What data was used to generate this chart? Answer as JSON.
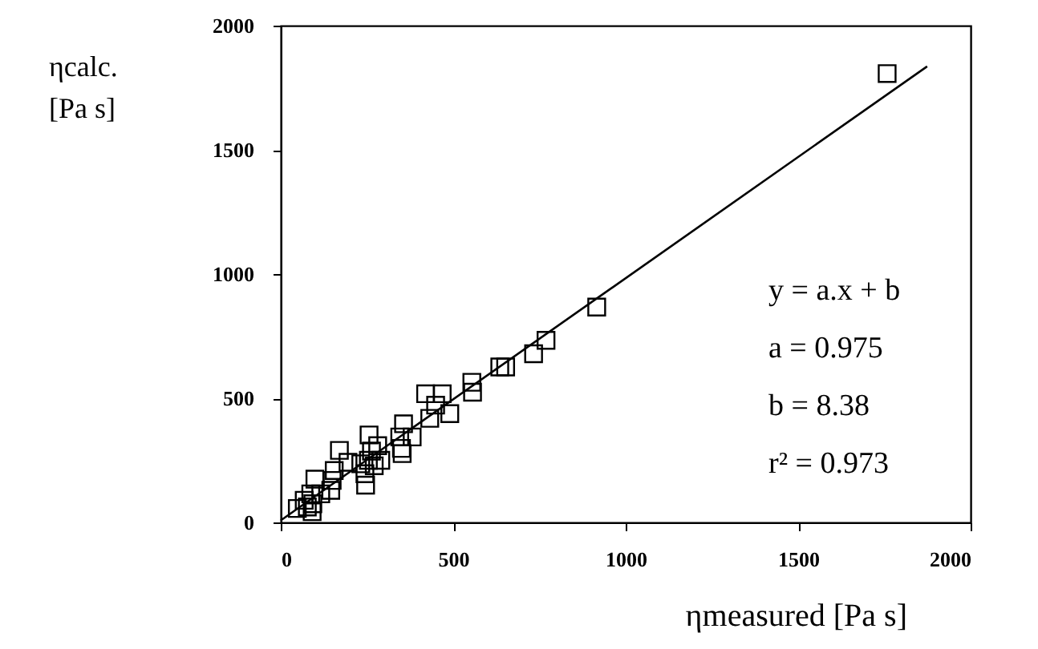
{
  "chart_data": {
    "type": "scatter",
    "xlabel": "ηmeasured   [Pa s]",
    "ylabel": "ηcalc.\n[Pa s]",
    "xlim": [
      0,
      2000
    ],
    "ylim": [
      0,
      2000
    ],
    "xticks": [
      0,
      500,
      1000,
      1500,
      2000
    ],
    "yticks": [
      0,
      500,
      1000,
      1500,
      2000
    ],
    "grid": false,
    "marker": "square",
    "series": [
      {
        "color": "#000000",
        "x": [
          1758,
          916,
          769,
          733,
          635,
          652,
          554,
          556,
          490,
          468,
          420,
          449,
          432,
          356,
          381,
          345,
          350,
          352,
          290,
          281,
          256,
          254,
          244,
          246,
          263,
          271,
          232,
          170,
          195,
          155,
          149,
          145,
          99,
          116,
          87,
          93,
          77,
          48,
          91,
          68
        ],
        "values": [
          1807,
          867,
          733,
          679,
          626,
          626,
          564,
          524,
          438,
          518,
          518,
          472,
          419,
          397,
          344,
          344,
          298,
          277,
          250,
          309,
          352,
          250,
          196,
          150,
          287,
          228,
          236,
          290,
          242,
          209,
          169,
          129,
          174,
          115,
          115,
          75,
          62,
          56,
          43,
          89
        ]
      },
      {
        "type": "line",
        "color": "#000000",
        "marker": "none",
        "line_style": "solid",
        "x": [
          0,
          1874
        ],
        "values": [
          8,
          1836
        ]
      }
    ],
    "annotations": [
      "y = a.x + b",
      "a = 0.975",
      "b = 8.38",
      "r² = 0.973"
    ]
  }
}
